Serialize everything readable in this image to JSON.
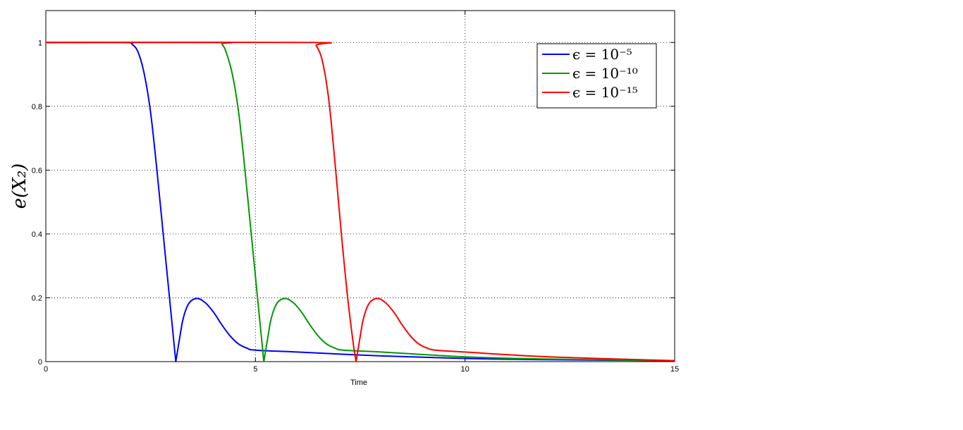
{
  "chart_data": {
    "type": "line",
    "xlabel": "Time",
    "ylabel": "e(X₂)",
    "xlim": [
      0,
      15
    ],
    "ylim": [
      0,
      1.1
    ],
    "xticks": [
      0,
      5,
      10,
      15
    ],
    "yticks": [
      0,
      0.2,
      0.4,
      0.6,
      0.8,
      1
    ],
    "xtick_labels": [
      "0",
      "5",
      "10",
      "15"
    ],
    "ytick_labels": [
      "0",
      "0.2",
      "0.4",
      "0.6",
      "0.8",
      "1"
    ],
    "grid": true,
    "legend_position": "top-right",
    "series": [
      {
        "name": "ϵ = 10⁻⁵",
        "color": "#0000ff",
        "x": [
          0,
          1.9,
          2.05,
          2.2,
          2.35,
          2.5,
          2.65,
          2.8,
          2.95,
          3.1,
          3.25,
          3.4,
          3.6,
          3.8,
          4.0,
          4.2,
          4.4,
          4.6,
          4.8,
          5.0,
          6.0,
          8.0,
          10.0,
          12.0,
          15.0
        ],
        "y": [
          1.0,
          1.0,
          0.995,
          0.97,
          0.9,
          0.78,
          0.6,
          0.4,
          0.2,
          0.0,
          0.12,
          0.18,
          0.198,
          0.185,
          0.155,
          0.115,
          0.08,
          0.055,
          0.042,
          0.036,
          0.03,
          0.018,
          0.01,
          0.006,
          0.003
        ]
      },
      {
        "name": "ϵ = 10⁻¹⁰",
        "color": "#009900",
        "x": [
          0,
          4.1,
          4.2,
          4.3,
          4.45,
          4.6,
          4.75,
          4.9,
          5.05,
          5.2,
          5.35,
          5.5,
          5.7,
          5.9,
          6.1,
          6.3,
          6.5,
          6.7,
          6.9,
          7.1,
          8.0,
          10.0,
          12.0,
          15.0
        ],
        "y": [
          1.0,
          1.0,
          0.995,
          0.97,
          0.9,
          0.78,
          0.6,
          0.4,
          0.2,
          0.0,
          0.12,
          0.18,
          0.198,
          0.185,
          0.155,
          0.115,
          0.08,
          0.055,
          0.042,
          0.036,
          0.03,
          0.015,
          0.008,
          0.003
        ]
      },
      {
        "name": "ϵ = 10⁻¹⁵",
        "color": "#ff0000",
        "x": [
          0,
          6.3,
          6.45,
          6.6,
          6.75,
          6.9,
          7.05,
          7.2,
          7.35,
          7.4,
          7.55,
          7.7,
          7.9,
          8.1,
          8.3,
          8.5,
          8.7,
          8.9,
          9.1,
          9.3,
          10.0,
          12.0,
          15.0
        ],
        "y": [
          1.0,
          1.0,
          0.99,
          0.94,
          0.82,
          0.62,
          0.4,
          0.2,
          0.04,
          0.0,
          0.12,
          0.18,
          0.198,
          0.185,
          0.155,
          0.115,
          0.08,
          0.055,
          0.042,
          0.036,
          0.03,
          0.015,
          0.003
        ]
      }
    ]
  }
}
